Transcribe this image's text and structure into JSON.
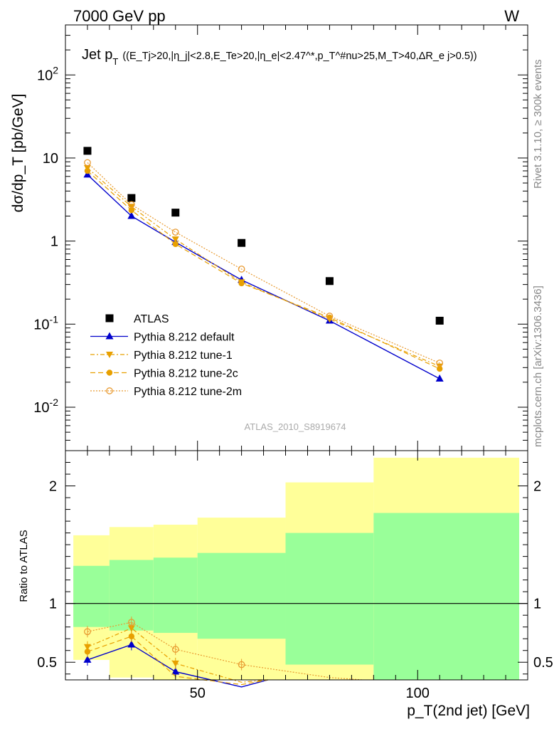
{
  "header": {
    "energy_label": "7000 GeV pp",
    "process_label": "W",
    "side_label_top": "Rivet 3.1.10, ≥ 300k events",
    "side_label_bottom": "mcplots.cern.ch [arXiv:1306.3436]",
    "watermark": "ATLAS_2010_S8919674"
  },
  "colors": {
    "atlas": "#000000",
    "default": "#0000cc",
    "tunes": "#e8a000",
    "tune2m": "#e89a30",
    "band_yellow": "#ffff99",
    "band_green": "#99ff99"
  },
  "chart_data": [
    {
      "type": "scatter",
      "panel": "main",
      "title_main": "Jet p",
      "title_sub": "T",
      "title_cuts": "((E_Tj>20,|η_j|<2.8,E_Te>20,|η_e|<2.47^*,p_T^#nu>25,M_T>40,ΔR_e j>0.5))",
      "ylabel": "dσ/dp_T [pb/GeV]",
      "yscale": "log",
      "ylim": [
        0.003,
        400
      ],
      "xlim": [
        20,
        125
      ],
      "y_tick_labels": [
        "10^-2",
        "10^-1",
        "1",
        "10",
        "10^2"
      ],
      "legend_position": "lower-left",
      "x": [
        25,
        35,
        45,
        60,
        80,
        105
      ],
      "series": [
        {
          "name": "ATLAS",
          "values": [
            12.2,
            3.3,
            2.2,
            0.95,
            0.33,
            0.11
          ]
        },
        {
          "name": "Pythia 8.212 default",
          "values": [
            6.3,
            2.0,
            0.97,
            0.34,
            0.11,
            0.022
          ]
        },
        {
          "name": "Pythia 8.212 tune-1",
          "values": [
            7.6,
            2.6,
            1.05,
            0.32,
            0.115,
            0.031
          ]
        },
        {
          "name": "Pythia 8.212 tune-2c",
          "values": [
            7.0,
            2.35,
            0.92,
            0.31,
            0.12,
            0.029
          ]
        },
        {
          "name": "Pythia 8.212 tune-2m",
          "values": [
            8.8,
            2.75,
            1.28,
            0.46,
            0.125,
            0.034
          ]
        }
      ]
    },
    {
      "type": "line",
      "panel": "ratio",
      "ylabel": "Ratio to ATLAS",
      "xlabel": "p_T(2nd jet) [GeV]",
      "ylim": [
        0.35,
        2.3
      ],
      "xlim": [
        20,
        125
      ],
      "y_tick_labels": [
        "0.5",
        "1",
        "2"
      ],
      "x_tick_labels": [
        "50",
        "100"
      ],
      "bins": [
        [
          20,
          30
        ],
        [
          30,
          40
        ],
        [
          40,
          50
        ],
        [
          50,
          70
        ],
        [
          70,
          90
        ],
        [
          90,
          125
        ]
      ],
      "band_yellow": [
        [
          0.52,
          1.58
        ],
        [
          0.37,
          1.65
        ],
        [
          0.32,
          1.67
        ],
        [
          0.29,
          1.73
        ],
        [
          0.2,
          2.03
        ],
        [
          0.1,
          2.24
        ]
      ],
      "band_green": [
        [
          0.8,
          1.32
        ],
        [
          0.77,
          1.37
        ],
        [
          0.75,
          1.39
        ],
        [
          0.7,
          1.43
        ],
        [
          0.48,
          1.6
        ],
        [
          0.35,
          1.77
        ]
      ],
      "x": [
        25,
        35,
        45,
        60,
        80,
        105
      ],
      "series": [
        {
          "name": "Pythia 8.212 default",
          "values": [
            0.52,
            0.65,
            0.42,
            0.29,
            null,
            null
          ]
        },
        {
          "name": "Pythia 8.212 tune-1",
          "values": [
            0.63,
            0.79,
            0.49,
            0.33,
            null,
            null
          ]
        },
        {
          "name": "Pythia 8.212 tune-2c",
          "values": [
            0.59,
            0.72,
            0.38,
            0.31,
            null,
            null
          ]
        },
        {
          "name": "Pythia 8.212 tune-2m",
          "values": [
            0.76,
            0.84,
            0.61,
            0.48,
            0.37,
            null
          ]
        }
      ]
    }
  ]
}
